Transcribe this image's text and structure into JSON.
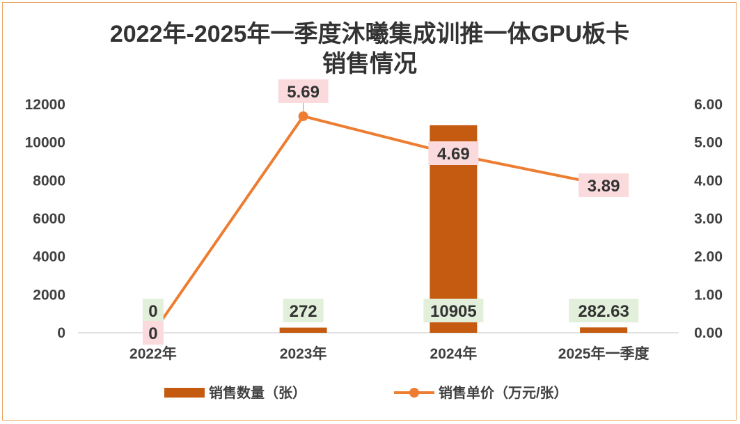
{
  "chart_data": {
    "type": "bar+line",
    "title_line1": "2022年-2025年一季度沐曦集成训推一体GPU板卡",
    "title_line2": "销售情况",
    "categories": [
      "2022年",
      "2023年",
      "2024年",
      "2025年一季度"
    ],
    "series": [
      {
        "name": "销售数量（张）",
        "type": "bar",
        "axis": "left",
        "values": [
          0,
          272,
          10905,
          282.63
        ],
        "labels": [
          "0",
          "272",
          "10905",
          "282.63"
        ],
        "color": "#c55a11",
        "label_bg": "#e2efda"
      },
      {
        "name": "销售单价（万元/张）",
        "type": "line",
        "axis": "right",
        "values": [
          0,
          5.69,
          4.69,
          3.89
        ],
        "labels": [
          "0",
          "5.69",
          "4.69",
          "3.89"
        ],
        "color": "#ed7d31",
        "label_bg": "#fadadd"
      }
    ],
    "y_left": {
      "min": 0,
      "max": 12000,
      "ticks": [
        "0",
        "2000",
        "4000",
        "6000",
        "8000",
        "10000",
        "12000"
      ]
    },
    "y_right": {
      "min": 0,
      "max": 6,
      "ticks": [
        "0.00",
        "1.00",
        "2.00",
        "3.00",
        "4.00",
        "5.00",
        "6.00"
      ]
    },
    "grid": false,
    "legend_position": "bottom"
  }
}
